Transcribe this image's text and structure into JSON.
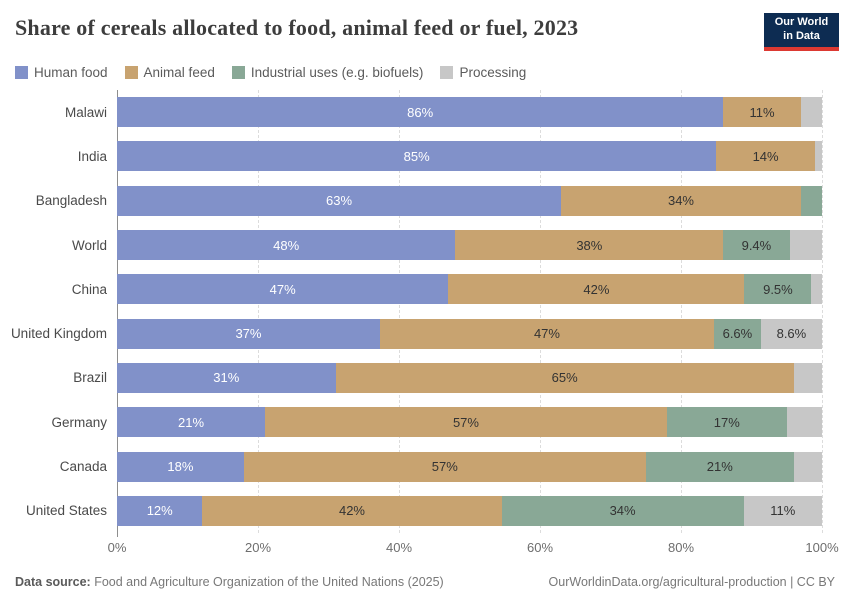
{
  "header": {
    "title": "Share of cereals allocated to food, animal feed or fuel, 2023",
    "logo_line1": "Our World",
    "logo_line2": "in Data",
    "logo_bg": "#0d2c52",
    "logo_accent": "#dc3932"
  },
  "legend": [
    {
      "label": "Human food",
      "color": "#8191c9"
    },
    {
      "label": "Animal feed",
      "color": "#c8a370"
    },
    {
      "label": "Industrial uses (e.g. biofuels)",
      "color": "#89a896"
    },
    {
      "label": "Processing",
      "color": "#c7c7c7"
    }
  ],
  "chart_data": {
    "type": "bar",
    "subtype": "horizontal-stacked",
    "title": "Share of cereals allocated to food, animal feed or fuel, 2023",
    "unit": "%",
    "xlim": [
      0,
      100
    ],
    "grid": "dashed-vertical",
    "categories": [
      "Malawi",
      "India",
      "Bangladesh",
      "World",
      "China",
      "United Kingdom",
      "Brazil",
      "Germany",
      "Canada",
      "United States"
    ],
    "series": [
      {
        "name": "Human food",
        "color": "#8191c9",
        "label_color": "#ffffff",
        "values": [
          86,
          85,
          63,
          48,
          47,
          37,
          31,
          21,
          18,
          12
        ],
        "labels": [
          "86%",
          "85%",
          "63%",
          "48%",
          "47%",
          "37%",
          "31%",
          "21%",
          "18%",
          "12%"
        ]
      },
      {
        "name": "Animal feed",
        "color": "#c8a370",
        "label_color": "#333333",
        "values": [
          11,
          14,
          34,
          38,
          42,
          47,
          65,
          57,
          57,
          42
        ],
        "labels": [
          "11%",
          "14%",
          "34%",
          "38%",
          "42%",
          "47%",
          "65%",
          "57%",
          "57%",
          "42%"
        ]
      },
      {
        "name": "Industrial uses (e.g. biofuels)",
        "color": "#89a896",
        "label_color": "#333333",
        "values": [
          0,
          0,
          3,
          9.4,
          9.5,
          6.6,
          0,
          17,
          21,
          34
        ],
        "labels": [
          "",
          "",
          "",
          "9.4%",
          "9.5%",
          "6.6%",
          "",
          "17%",
          "21%",
          "34%"
        ]
      },
      {
        "name": "Processing",
        "color": "#c7c7c7",
        "label_color": "#333333",
        "values": [
          3,
          1,
          0,
          4.6,
          1.5,
          8.6,
          4,
          5,
          4,
          11
        ],
        "labels": [
          "",
          "",
          "",
          "",
          "",
          "8.6%",
          "",
          "",
          "",
          "11%"
        ]
      }
    ],
    "x_ticks": [
      "0%",
      "20%",
      "40%",
      "60%",
      "80%",
      "100%"
    ]
  },
  "footer": {
    "source_label": "Data source:",
    "source_text": " Food and Agriculture Organization of the United Nations (2025)",
    "link_text": "OurWorldinData.org/agricultural-production | CC BY"
  }
}
